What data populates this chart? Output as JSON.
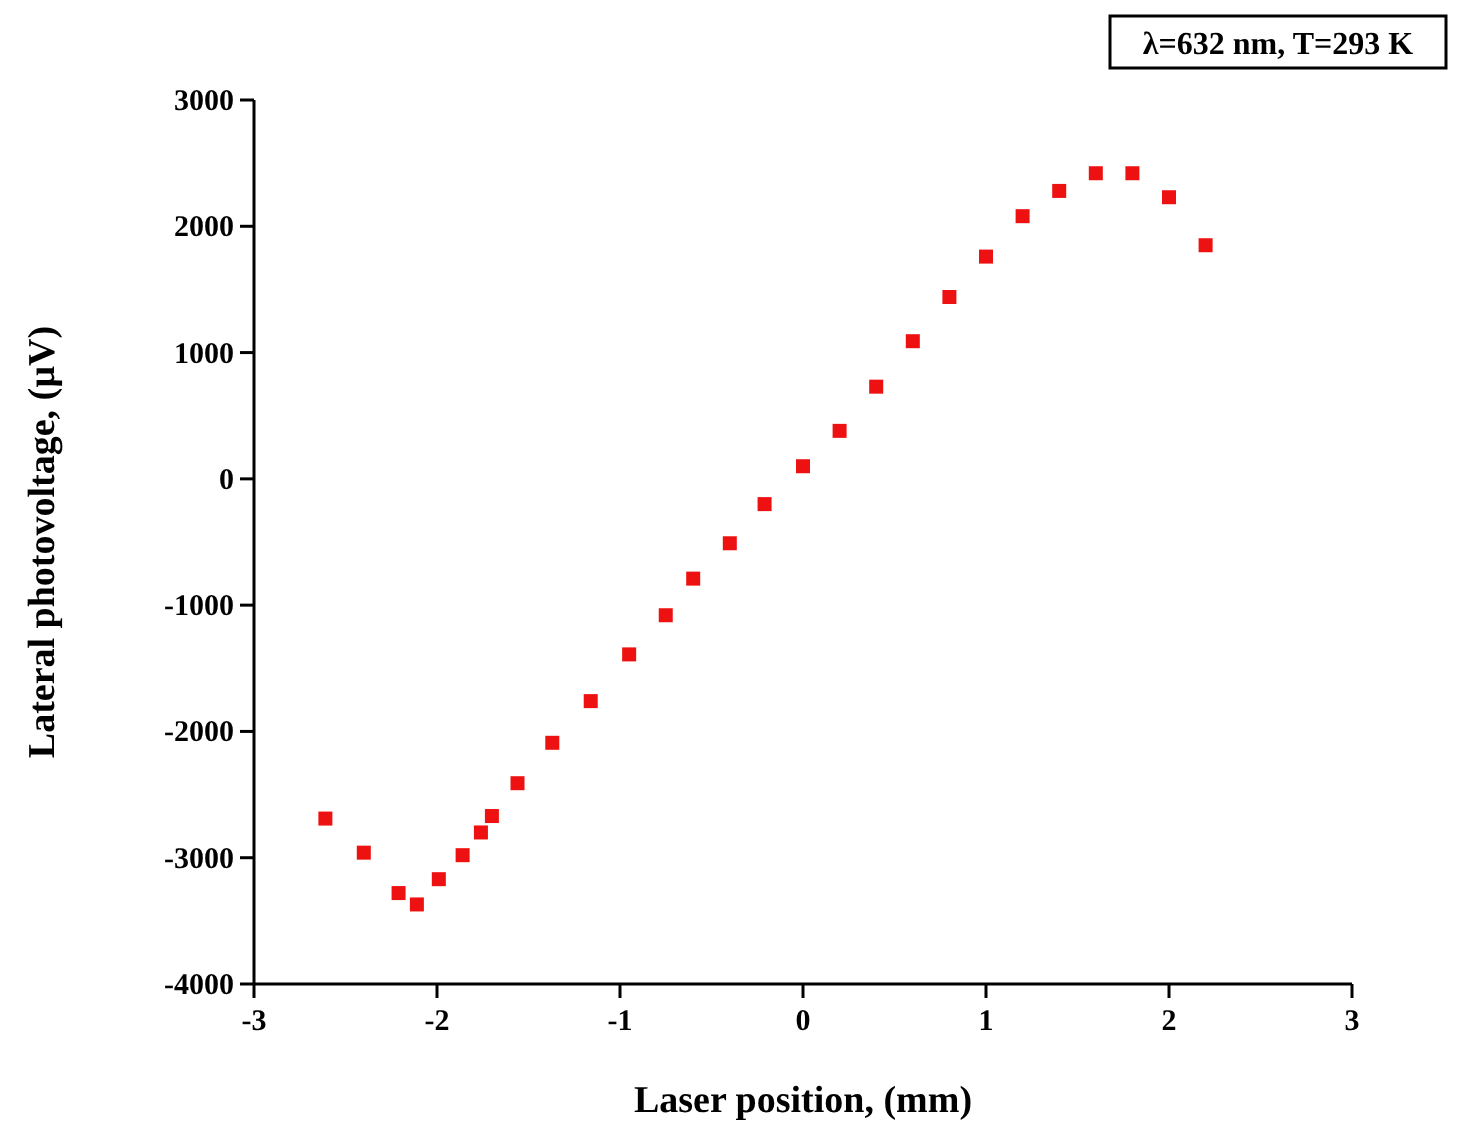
{
  "chart_data": {
    "type": "scatter",
    "xlabel": "Laser position, (mm)",
    "ylabel": "Lateral photovoltage, (µV)",
    "annotations": [
      "λ=632 nm, T=293 K"
    ],
    "xlim": [
      -3,
      3
    ],
    "xticks": [
      -3,
      -2,
      -1,
      0,
      1,
      2,
      3
    ],
    "ylim": [
      -4000,
      3000
    ],
    "yticks": [
      -4000,
      -3000,
      -2000,
      -1000,
      0,
      1000,
      2000,
      3000
    ],
    "grid": false,
    "marker": "square",
    "series": [
      {
        "color": "#ee1111",
        "x": [
          -2.61,
          -2.4,
          -2.21,
          -2.11,
          -1.99,
          -1.86,
          -1.76,
          -1.7,
          -1.56,
          -1.37,
          -1.16,
          -0.95,
          -0.75,
          -0.6,
          -0.4,
          -0.21,
          0,
          0.2,
          0.4,
          0.6,
          0.8,
          1,
          1.2,
          1.4,
          1.6,
          1.8,
          2,
          2.2
        ],
        "values": [
          -2690,
          -2960,
          -3280,
          -3370,
          -3170,
          -2980,
          -2800,
          -2670,
          -2410,
          -2090,
          -1760,
          -1390,
          -1080,
          -790,
          -510,
          -200,
          100,
          380,
          730,
          1090,
          1440,
          1760,
          2080,
          2280,
          2420,
          2420,
          2230,
          1850
        ]
      }
    ]
  }
}
